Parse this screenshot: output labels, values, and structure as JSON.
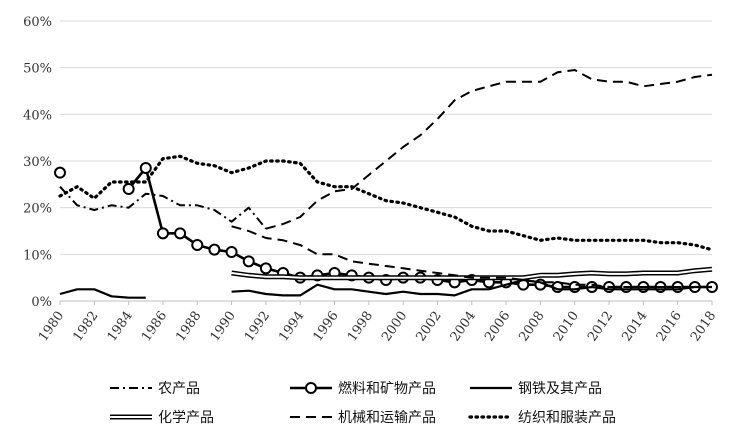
{
  "chart_data": {
    "type": "line",
    "title": "",
    "xlabel": "",
    "ylabel": "",
    "xlim": [
      1980,
      2018
    ],
    "ylim": [
      0,
      60
    ],
    "y_tick_values": [
      0,
      10,
      20,
      30,
      40,
      50,
      60
    ],
    "y_tick_labels": [
      "0%",
      "10%",
      "20%",
      "30%",
      "40%",
      "50%",
      "60%"
    ],
    "x_tick_values": [
      1980,
      1982,
      1984,
      1986,
      1988,
      1990,
      1992,
      1994,
      1996,
      1998,
      2000,
      2002,
      2004,
      2006,
      2008,
      2010,
      2012,
      2014,
      2016,
      2018
    ],
    "x_tick_labels": [
      "1980",
      "1982",
      "1984",
      "1986",
      "1988",
      "1990",
      "1992",
      "1994",
      "1996",
      "1998",
      "2000",
      "2002",
      "2004",
      "2006",
      "2008",
      "2010",
      "2012",
      "2014",
      "2016",
      "2018"
    ],
    "grid": "horizontal",
    "legend_position": "bottom",
    "series": [
      {
        "name": "农产品",
        "style": "dash-dot",
        "color": "#000000",
        "x": [
          1980,
          1981,
          1982,
          1983,
          1984,
          1985,
          1986,
          1987,
          1988,
          1989,
          1990,
          1991,
          1992
        ],
        "values": [
          24.5,
          20.5,
          19.5,
          20.5,
          20.0,
          23.0,
          22.5,
          20.5,
          20.5,
          19.5,
          17.0,
          20.0,
          15.5
        ]
      },
      {
        "name": "燃料和矿物产品",
        "style": "circle-markers",
        "color": "#000000",
        "segments": [
          {
            "x": [
              1980
            ],
            "values": [
              27.5
            ]
          },
          {
            "x": [
              1984,
              1985,
              1986,
              1987,
              1988,
              1989,
              1990,
              1991,
              1992,
              1993,
              1994,
              1995,
              1996,
              1997,
              1998,
              1999,
              2000,
              2001,
              2002,
              2003,
              2004,
              2005,
              2006,
              2007,
              2008,
              2009,
              2010,
              2011,
              2012,
              2013,
              2014,
              2015,
              2016,
              2017,
              2018
            ],
            "values": [
              24.0,
              28.5,
              14.5,
              14.5,
              12.0,
              11.0,
              10.5,
              8.5,
              7.0,
              6.0,
              5.0,
              5.5,
              6.0,
              5.5,
              5.0,
              4.5,
              5.0,
              5.0,
              4.5,
              4.0,
              4.5,
              4.0,
              4.0,
              3.5,
              3.5,
              3.0,
              3.0,
              3.0,
              3.0,
              3.0,
              3.0,
              3.0,
              3.0,
              3.0,
              3.0
            ]
          }
        ]
      },
      {
        "name": "钢铁及其产品",
        "style": "solid",
        "color": "#000000",
        "segments": [
          {
            "x": [
              1980,
              1981,
              1982,
              1983,
              1984,
              1985
            ],
            "values": [
              1.5,
              2.5,
              2.5,
              1.0,
              0.7,
              0.7
            ]
          },
          {
            "x": [
              1990,
              1991,
              1992,
              1993,
              1994,
              1995,
              1996,
              1997,
              1998,
              1999,
              2000,
              2001,
              2002,
              2003,
              2004,
              2005,
              2006,
              2007,
              2008,
              2009,
              2010,
              2011,
              2012,
              2013,
              2014,
              2015,
              2016,
              2017,
              2018
            ],
            "values": [
              2.0,
              2.2,
              1.5,
              1.2,
              1.2,
              3.5,
              2.5,
              2.5,
              2.0,
              1.5,
              2.0,
              1.5,
              1.5,
              1.2,
              2.5,
              2.5,
              3.5,
              4.5,
              4.0,
              2.5,
              2.5,
              3.0,
              2.5,
              2.5,
              2.5,
              2.5,
              2.5,
              3.0,
              3.0
            ]
          }
        ]
      },
      {
        "name": "化学产品",
        "style": "double-line",
        "color": "#000000",
        "x": [
          1990,
          1991,
          1992,
          1993,
          1994,
          1995,
          1996,
          1997,
          1998,
          1999,
          2000,
          2001,
          2002,
          2003,
          2004,
          2005,
          2006,
          2007,
          2008,
          2009,
          2010,
          2011,
          2012,
          2013,
          2014,
          2015,
          2016,
          2017,
          2018
        ],
        "values": [
          6.0,
          5.5,
          5.2,
          5.2,
          5.0,
          5.0,
          5.0,
          5.0,
          5.0,
          5.0,
          5.0,
          5.0,
          5.0,
          5.0,
          5.0,
          5.0,
          5.0,
          5.0,
          5.5,
          5.5,
          5.8,
          6.0,
          5.8,
          5.8,
          6.0,
          6.0,
          6.0,
          6.5,
          6.8
        ]
      },
      {
        "name": "机械和运输产品",
        "style": "dashed",
        "color": "#000000",
        "x": [
          1990,
          1991,
          1992,
          1993,
          1994,
          1995,
          1996,
          1997,
          1998,
          1999,
          2000,
          2001,
          2002,
          2003,
          2004,
          2005,
          2006,
          2007,
          2008,
          2009,
          2010,
          2011,
          2012,
          2013,
          2014,
          2015,
          2016,
          2017,
          2018
        ],
        "values": [
          16.0,
          15.0,
          13.5,
          13.0,
          12.0,
          10.0,
          10.0,
          8.5,
          8.0,
          7.5,
          7.0,
          6.5,
          6.0,
          5.5,
          5.0,
          5.0,
          5.0,
          4.5,
          4.0,
          4.0,
          3.5,
          3.5,
          3.0,
          3.0,
          3.0,
          3.0,
          3.0,
          3.0,
          3.0
        ]
      },
      {
        "name": "机械和运输产品",
        "style": "dashed",
        "color": "#000000",
        "x": [
          1992,
          1993,
          1994,
          1995,
          1996,
          1997,
          1998,
          1999,
          2000,
          2001,
          2002,
          2003,
          2004,
          2005,
          2006,
          2007,
          2008,
          2009,
          2010,
          2011,
          2012,
          2013,
          2014,
          2015,
          2016,
          2017,
          2018
        ],
        "values": [
          15.5,
          16.5,
          18.0,
          21.5,
          23.5,
          24.0,
          27.0,
          30.0,
          33.0,
          35.5,
          39.0,
          43.0,
          45.0,
          46.0,
          47.0,
          47.0,
          47.0,
          49.0,
          49.5,
          47.5,
          47.0,
          47.0,
          46.0,
          46.5,
          47.0,
          48.0,
          48.5
        ]
      },
      {
        "name": "纺织和服装产品",
        "style": "dotted",
        "color": "#000000",
        "x": [
          1980,
          1981,
          1982,
          1983,
          1984,
          1985,
          1986,
          1987,
          1988,
          1989,
          1990,
          1991,
          1992,
          1993,
          1994,
          1995,
          1996,
          1997,
          1998,
          1999,
          2000,
          2001,
          2002,
          2003,
          2004,
          2005,
          2006,
          2007,
          2008,
          2009,
          2010,
          2011,
          2012,
          2013,
          2014,
          2015,
          2016,
          2017,
          2018
        ],
        "values": [
          22.5,
          24.5,
          22.0,
          25.5,
          25.5,
          25.5,
          30.5,
          31.0,
          29.5,
          29.0,
          27.5,
          28.5,
          30.0,
          30.0,
          29.5,
          25.5,
          24.5,
          24.5,
          23.0,
          21.5,
          21.0,
          20.0,
          19.0,
          18.0,
          16.0,
          15.0,
          15.0,
          14.0,
          13.0,
          13.5,
          13.0,
          13.0,
          13.0,
          13.0,
          13.0,
          12.5,
          12.5,
          12.0,
          11.0
        ]
      }
    ]
  },
  "legend": {
    "items": [
      {
        "label": "农产品",
        "style": "dash-dot"
      },
      {
        "label": "燃料和矿物产品",
        "style": "circle-markers"
      },
      {
        "label": "钢铁及其产品",
        "style": "solid"
      },
      {
        "label": "化学产品",
        "style": "double-line"
      },
      {
        "label": "机械和运输产品",
        "style": "dashed"
      },
      {
        "label": "纺织和服装产品",
        "style": "dotted"
      }
    ]
  }
}
